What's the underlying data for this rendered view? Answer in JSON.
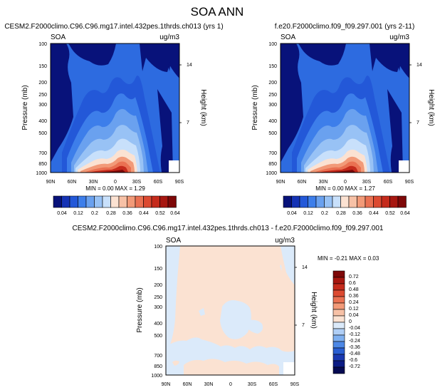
{
  "chart_data": {
    "type": "contour",
    "title": "SOA ANN",
    "variable": "SOA",
    "units": "ug/m3",
    "x_ticks": [
      "90N",
      "60N",
      "30N",
      "0",
      "30S",
      "60S",
      "90S"
    ],
    "y_ticks": [
      100,
      150,
      200,
      250,
      300,
      400,
      500,
      700,
      850,
      1000
    ],
    "ylabel": "Pressure (mb)",
    "ylabel_right": "Height (km)",
    "height_ticks": [
      14,
      7
    ],
    "panels": [
      {
        "name": "test",
        "title": "CESM2.F2000climo.C96.C96.mg17.intel.432pes.1thrds.ch013 (yrs 1)",
        "stats": "MIN =  0.00  MAX =  1.29",
        "min": 0.0,
        "max": 1.29
      },
      {
        "name": "control",
        "title": "f.e20.F2000climo.f09_f09.297.001 (yrs 2-11)",
        "stats": "MIN =  0.00  MAX =  1.27",
        "min": 0.0,
        "max": 1.27
      },
      {
        "name": "difference",
        "title": "CESM2.F2000climo.C96.C96.mg17.intel.432pes.1thrds.ch013 - f.e20.F2000climo.f09_f09.297.001",
        "stats": "MIN = -0.21  MAX =  0.03",
        "min": -0.21,
        "max": 0.03
      }
    ],
    "colorbar_top": {
      "labels": [
        "0.04",
        "0.12",
        "0.2",
        "0.28",
        "0.36",
        "0.44",
        "0.52",
        "0.64"
      ],
      "colors": [
        "#08127a",
        "#1533b5",
        "#2358d8",
        "#3d7eea",
        "#6aa1ef",
        "#98c2f5",
        "#c8e0fb",
        "#fbe2d2",
        "#f7c1a6",
        "#f29a78",
        "#ea7152",
        "#dc4a31",
        "#c52b1c",
        "#a71710",
        "#7e0808"
      ]
    },
    "colorbar_diff": {
      "labels": [
        "0.72",
        "0.6",
        "0.48",
        "0.36",
        "0.24",
        "0.12",
        "0.04",
        "0",
        "-0.04",
        "-0.12",
        "-0.24",
        "-0.36",
        "-0.48",
        "-0.6",
        "-0.72"
      ],
      "colors": [
        "#7e0808",
        "#a71710",
        "#c52b1c",
        "#dc4a31",
        "#ea7152",
        "#f29a78",
        "#f7c1a6",
        "#fbe2d2",
        "#dbeafa",
        "#b0cff6",
        "#7fb0f0",
        "#4d88e6",
        "#2a5fd2",
        "#1a39b0",
        "#0c1c85",
        "#050a52"
      ]
    }
  }
}
